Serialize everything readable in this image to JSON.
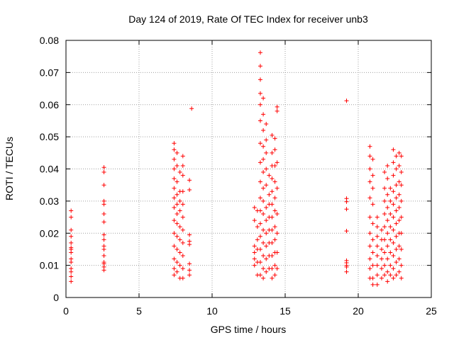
{
  "chart_data": {
    "type": "scatter",
    "title": "Day 124 of 2019, Rate Of TEC Index for receiver unb3",
    "xlabel": "GPS time / hours",
    "ylabel": "ROTI / TECUs",
    "xlim": [
      0,
      25
    ],
    "ylim": [
      0,
      0.08
    ],
    "x_ticks": [
      "0",
      "5",
      "10",
      "15",
      "20",
      "25"
    ],
    "y_ticks": [
      "0",
      "0.01",
      "0.02",
      "0.03",
      "0.04",
      "0.05",
      "0.06",
      "0.07",
      "0.08"
    ],
    "grid": true,
    "marker": "+",
    "color": "#ff0000",
    "series": [
      {
        "points": [
          [
            0.35,
            0.027
          ],
          [
            0.35,
            0.025
          ],
          [
            0.35,
            0.021
          ],
          [
            0.35,
            0.019
          ],
          [
            0.35,
            0.017
          ],
          [
            0.35,
            0.0155
          ],
          [
            0.35,
            0.015
          ],
          [
            0.35,
            0.014
          ],
          [
            0.35,
            0.012
          ],
          [
            0.35,
            0.011
          ],
          [
            0.35,
            0.009
          ],
          [
            0.35,
            0.008
          ],
          [
            0.35,
            0.0065
          ],
          [
            0.35,
            0.005
          ],
          [
            2.6,
            0.0405
          ],
          [
            2.6,
            0.039
          ],
          [
            2.6,
            0.035
          ],
          [
            2.6,
            0.03
          ],
          [
            2.6,
            0.029
          ],
          [
            2.6,
            0.026
          ],
          [
            2.6,
            0.0235
          ],
          [
            2.6,
            0.0195
          ],
          [
            2.6,
            0.018
          ],
          [
            2.6,
            0.016
          ],
          [
            2.6,
            0.015
          ],
          [
            2.6,
            0.013
          ],
          [
            2.6,
            0.011
          ],
          [
            2.6,
            0.0105
          ],
          [
            2.6,
            0.0095
          ],
          [
            2.6,
            0.0085
          ],
          [
            7.4,
            0.048
          ],
          [
            7.4,
            0.046
          ],
          [
            7.4,
            0.043
          ],
          [
            7.4,
            0.04
          ],
          [
            7.4,
            0.037
          ],
          [
            7.4,
            0.034
          ],
          [
            7.4,
            0.031
          ],
          [
            7.4,
            0.028
          ],
          [
            7.4,
            0.024
          ],
          [
            7.4,
            0.02
          ],
          [
            7.4,
            0.016
          ],
          [
            7.4,
            0.012
          ],
          [
            7.4,
            0.009
          ],
          [
            7.4,
            0.007
          ],
          [
            7.6,
            0.045
          ],
          [
            7.6,
            0.041
          ],
          [
            7.6,
            0.036
          ],
          [
            7.6,
            0.032
          ],
          [
            7.6,
            0.029
          ],
          [
            7.6,
            0.026
          ],
          [
            7.6,
            0.023
          ],
          [
            7.6,
            0.019
          ],
          [
            7.6,
            0.015
          ],
          [
            7.6,
            0.011
          ],
          [
            7.6,
            0.008
          ],
          [
            7.8,
            0.039
          ],
          [
            7.8,
            0.033
          ],
          [
            7.8,
            0.03
          ],
          [
            7.8,
            0.027
          ],
          [
            7.8,
            0.022
          ],
          [
            7.8,
            0.018
          ],
          [
            7.8,
            0.014
          ],
          [
            7.8,
            0.01
          ],
          [
            7.8,
            0.006
          ],
          [
            8.0,
            0.044
          ],
          [
            8.0,
            0.041
          ],
          [
            8.0,
            0.038
          ],
          [
            8.0,
            0.033
          ],
          [
            8.0,
            0.029
          ],
          [
            8.0,
            0.025
          ],
          [
            8.0,
            0.021
          ],
          [
            8.0,
            0.017
          ],
          [
            8.0,
            0.013
          ],
          [
            8.0,
            0.009
          ],
          [
            8.0,
            0.006
          ],
          [
            8.45,
            0.0365
          ],
          [
            8.45,
            0.0335
          ],
          [
            8.45,
            0.0195
          ],
          [
            8.45,
            0.0175
          ],
          [
            8.45,
            0.0165
          ],
          [
            8.45,
            0.0105
          ],
          [
            8.45,
            0.0085
          ],
          [
            8.45,
            0.007
          ],
          [
            8.6,
            0.0588
          ],
          [
            12.9,
            0.028
          ],
          [
            12.9,
            0.024
          ],
          [
            12.9,
            0.016
          ],
          [
            12.9,
            0.014
          ],
          [
            12.9,
            0.012
          ],
          [
            12.9,
            0.01
          ],
          [
            13.1,
            0.027
          ],
          [
            13.1,
            0.022
          ],
          [
            13.1,
            0.018
          ],
          [
            13.1,
            0.015
          ],
          [
            13.1,
            0.011
          ],
          [
            13.1,
            0.007
          ],
          [
            13.3,
            0.0762
          ],
          [
            13.3,
            0.072
          ],
          [
            13.3,
            0.0678
          ],
          [
            13.3,
            0.0635
          ],
          [
            13.3,
            0.06
          ],
          [
            13.3,
            0.055
          ],
          [
            13.3,
            0.048
          ],
          [
            13.3,
            0.042
          ],
          [
            13.3,
            0.036
          ],
          [
            13.3,
            0.031
          ],
          [
            13.3,
            0.027
          ],
          [
            13.3,
            0.023
          ],
          [
            13.3,
            0.019
          ],
          [
            13.3,
            0.015
          ],
          [
            13.3,
            0.011
          ],
          [
            13.3,
            0.007
          ],
          [
            13.5,
            0.062
          ],
          [
            13.5,
            0.057
          ],
          [
            13.5,
            0.052
          ],
          [
            13.5,
            0.047
          ],
          [
            13.5,
            0.043
          ],
          [
            13.5,
            0.039
          ],
          [
            13.5,
            0.034
          ],
          [
            13.5,
            0.03
          ],
          [
            13.5,
            0.026
          ],
          [
            13.5,
            0.021
          ],
          [
            13.5,
            0.017
          ],
          [
            13.5,
            0.013
          ],
          [
            13.5,
            0.009
          ],
          [
            13.5,
            0.006
          ],
          [
            13.7,
            0.054
          ],
          [
            13.7,
            0.049
          ],
          [
            13.7,
            0.045
          ],
          [
            13.7,
            0.04
          ],
          [
            13.7,
            0.035
          ],
          [
            13.7,
            0.028
          ],
          [
            13.7,
            0.024
          ],
          [
            13.7,
            0.02
          ],
          [
            13.7,
            0.016
          ],
          [
            13.7,
            0.012
          ],
          [
            13.7,
            0.008
          ],
          [
            13.9,
            0.038
          ],
          [
            13.9,
            0.032
          ],
          [
            13.9,
            0.029
          ],
          [
            13.9,
            0.025
          ],
          [
            13.9,
            0.021
          ],
          [
            13.9,
            0.017
          ],
          [
            13.9,
            0.013
          ],
          [
            13.9,
            0.009
          ],
          [
            14.1,
            0.0505
          ],
          [
            14.1,
            0.045
          ],
          [
            14.1,
            0.041
          ],
          [
            14.1,
            0.037
          ],
          [
            14.1,
            0.033
          ],
          [
            14.1,
            0.029
          ],
          [
            14.1,
            0.025
          ],
          [
            14.1,
            0.021
          ],
          [
            14.1,
            0.017
          ],
          [
            14.1,
            0.013
          ],
          [
            14.1,
            0.009
          ],
          [
            14.1,
            0.006
          ],
          [
            14.3,
            0.0495
          ],
          [
            14.3,
            0.046
          ],
          [
            14.3,
            0.041
          ],
          [
            14.3,
            0.036
          ],
          [
            14.3,
            0.031
          ],
          [
            14.3,
            0.027
          ],
          [
            14.3,
            0.022
          ],
          [
            14.3,
            0.018
          ],
          [
            14.3,
            0.014
          ],
          [
            14.3,
            0.01
          ],
          [
            14.3,
            0.007
          ],
          [
            14.45,
            0.0593
          ],
          [
            14.45,
            0.058
          ],
          [
            14.45,
            0.042
          ],
          [
            14.45,
            0.034
          ],
          [
            14.45,
            0.026
          ],
          [
            14.45,
            0.02
          ],
          [
            14.45,
            0.014
          ],
          [
            14.45,
            0.009
          ],
          [
            19.2,
            0.0612
          ],
          [
            19.2,
            0.0308
          ],
          [
            19.2,
            0.0298
          ],
          [
            19.2,
            0.0275
          ],
          [
            19.2,
            0.0207
          ],
          [
            19.2,
            0.0115
          ],
          [
            19.2,
            0.0108
          ],
          [
            19.2,
            0.01
          ],
          [
            19.2,
            0.0095
          ],
          [
            19.2,
            0.008
          ],
          [
            20.8,
            0.047
          ],
          [
            20.8,
            0.044
          ],
          [
            20.8,
            0.04
          ],
          [
            20.8,
            0.036
          ],
          [
            20.8,
            0.031
          ],
          [
            20.8,
            0.025
          ],
          [
            20.8,
            0.02
          ],
          [
            20.8,
            0.016
          ],
          [
            20.8,
            0.012
          ],
          [
            20.8,
            0.009
          ],
          [
            20.8,
            0.006
          ],
          [
            21.0,
            0.043
          ],
          [
            21.0,
            0.038
          ],
          [
            21.0,
            0.034
          ],
          [
            21.0,
            0.029
          ],
          [
            21.0,
            0.023
          ],
          [
            21.0,
            0.018
          ],
          [
            21.0,
            0.014
          ],
          [
            21.0,
            0.01
          ],
          [
            21.0,
            0.006
          ],
          [
            21.0,
            0.004
          ],
          [
            21.3,
            0.025
          ],
          [
            21.3,
            0.022
          ],
          [
            21.3,
            0.019
          ],
          [
            21.3,
            0.016
          ],
          [
            21.3,
            0.013
          ],
          [
            21.3,
            0.01
          ],
          [
            21.3,
            0.007
          ],
          [
            21.3,
            0.004
          ],
          [
            21.6,
            0.021
          ],
          [
            21.6,
            0.018
          ],
          [
            21.6,
            0.015
          ],
          [
            21.6,
            0.012
          ],
          [
            21.6,
            0.009
          ],
          [
            21.6,
            0.006
          ],
          [
            21.8,
            0.039
          ],
          [
            21.8,
            0.034
          ],
          [
            21.8,
            0.03
          ],
          [
            21.8,
            0.026
          ],
          [
            21.8,
            0.022
          ],
          [
            21.8,
            0.018
          ],
          [
            21.8,
            0.014
          ],
          [
            21.8,
            0.01
          ],
          [
            21.8,
            0.007
          ],
          [
            22.0,
            0.041
          ],
          [
            22.0,
            0.037
          ],
          [
            22.0,
            0.032
          ],
          [
            22.0,
            0.028
          ],
          [
            22.0,
            0.024
          ],
          [
            22.0,
            0.02
          ],
          [
            22.0,
            0.016
          ],
          [
            22.0,
            0.012
          ],
          [
            22.0,
            0.008
          ],
          [
            22.0,
            0.005
          ],
          [
            22.2,
            0.034
          ],
          [
            22.2,
            0.03
          ],
          [
            22.2,
            0.026
          ],
          [
            22.2,
            0.022
          ],
          [
            22.2,
            0.018
          ],
          [
            22.2,
            0.014
          ],
          [
            22.2,
            0.01
          ],
          [
            22.2,
            0.007
          ],
          [
            22.4,
            0.046
          ],
          [
            22.4,
            0.042
          ],
          [
            22.4,
            0.038
          ],
          [
            22.4,
            0.033
          ],
          [
            22.4,
            0.029
          ],
          [
            22.4,
            0.025
          ],
          [
            22.4,
            0.021
          ],
          [
            22.4,
            0.017
          ],
          [
            22.4,
            0.013
          ],
          [
            22.4,
            0.009
          ],
          [
            22.4,
            0.006
          ],
          [
            22.6,
            0.044
          ],
          [
            22.6,
            0.04
          ],
          [
            22.6,
            0.035
          ],
          [
            22.6,
            0.031
          ],
          [
            22.6,
            0.027
          ],
          [
            22.6,
            0.023
          ],
          [
            22.6,
            0.019
          ],
          [
            22.6,
            0.015
          ],
          [
            22.6,
            0.011
          ],
          [
            22.6,
            0.007
          ],
          [
            22.8,
            0.045
          ],
          [
            22.8,
            0.041
          ],
          [
            22.8,
            0.036
          ],
          [
            22.8,
            0.032
          ],
          [
            22.8,
            0.028
          ],
          [
            22.8,
            0.024
          ],
          [
            22.8,
            0.02
          ],
          [
            22.8,
            0.016
          ],
          [
            22.8,
            0.012
          ],
          [
            22.8,
            0.008
          ],
          [
            22.95,
            0.044
          ],
          [
            22.95,
            0.039
          ],
          [
            22.95,
            0.035
          ],
          [
            22.95,
            0.03
          ],
          [
            22.95,
            0.025
          ],
          [
            22.95,
            0.02
          ],
          [
            22.95,
            0.015
          ],
          [
            22.95,
            0.01
          ],
          [
            22.95,
            0.006
          ]
        ]
      }
    ]
  }
}
